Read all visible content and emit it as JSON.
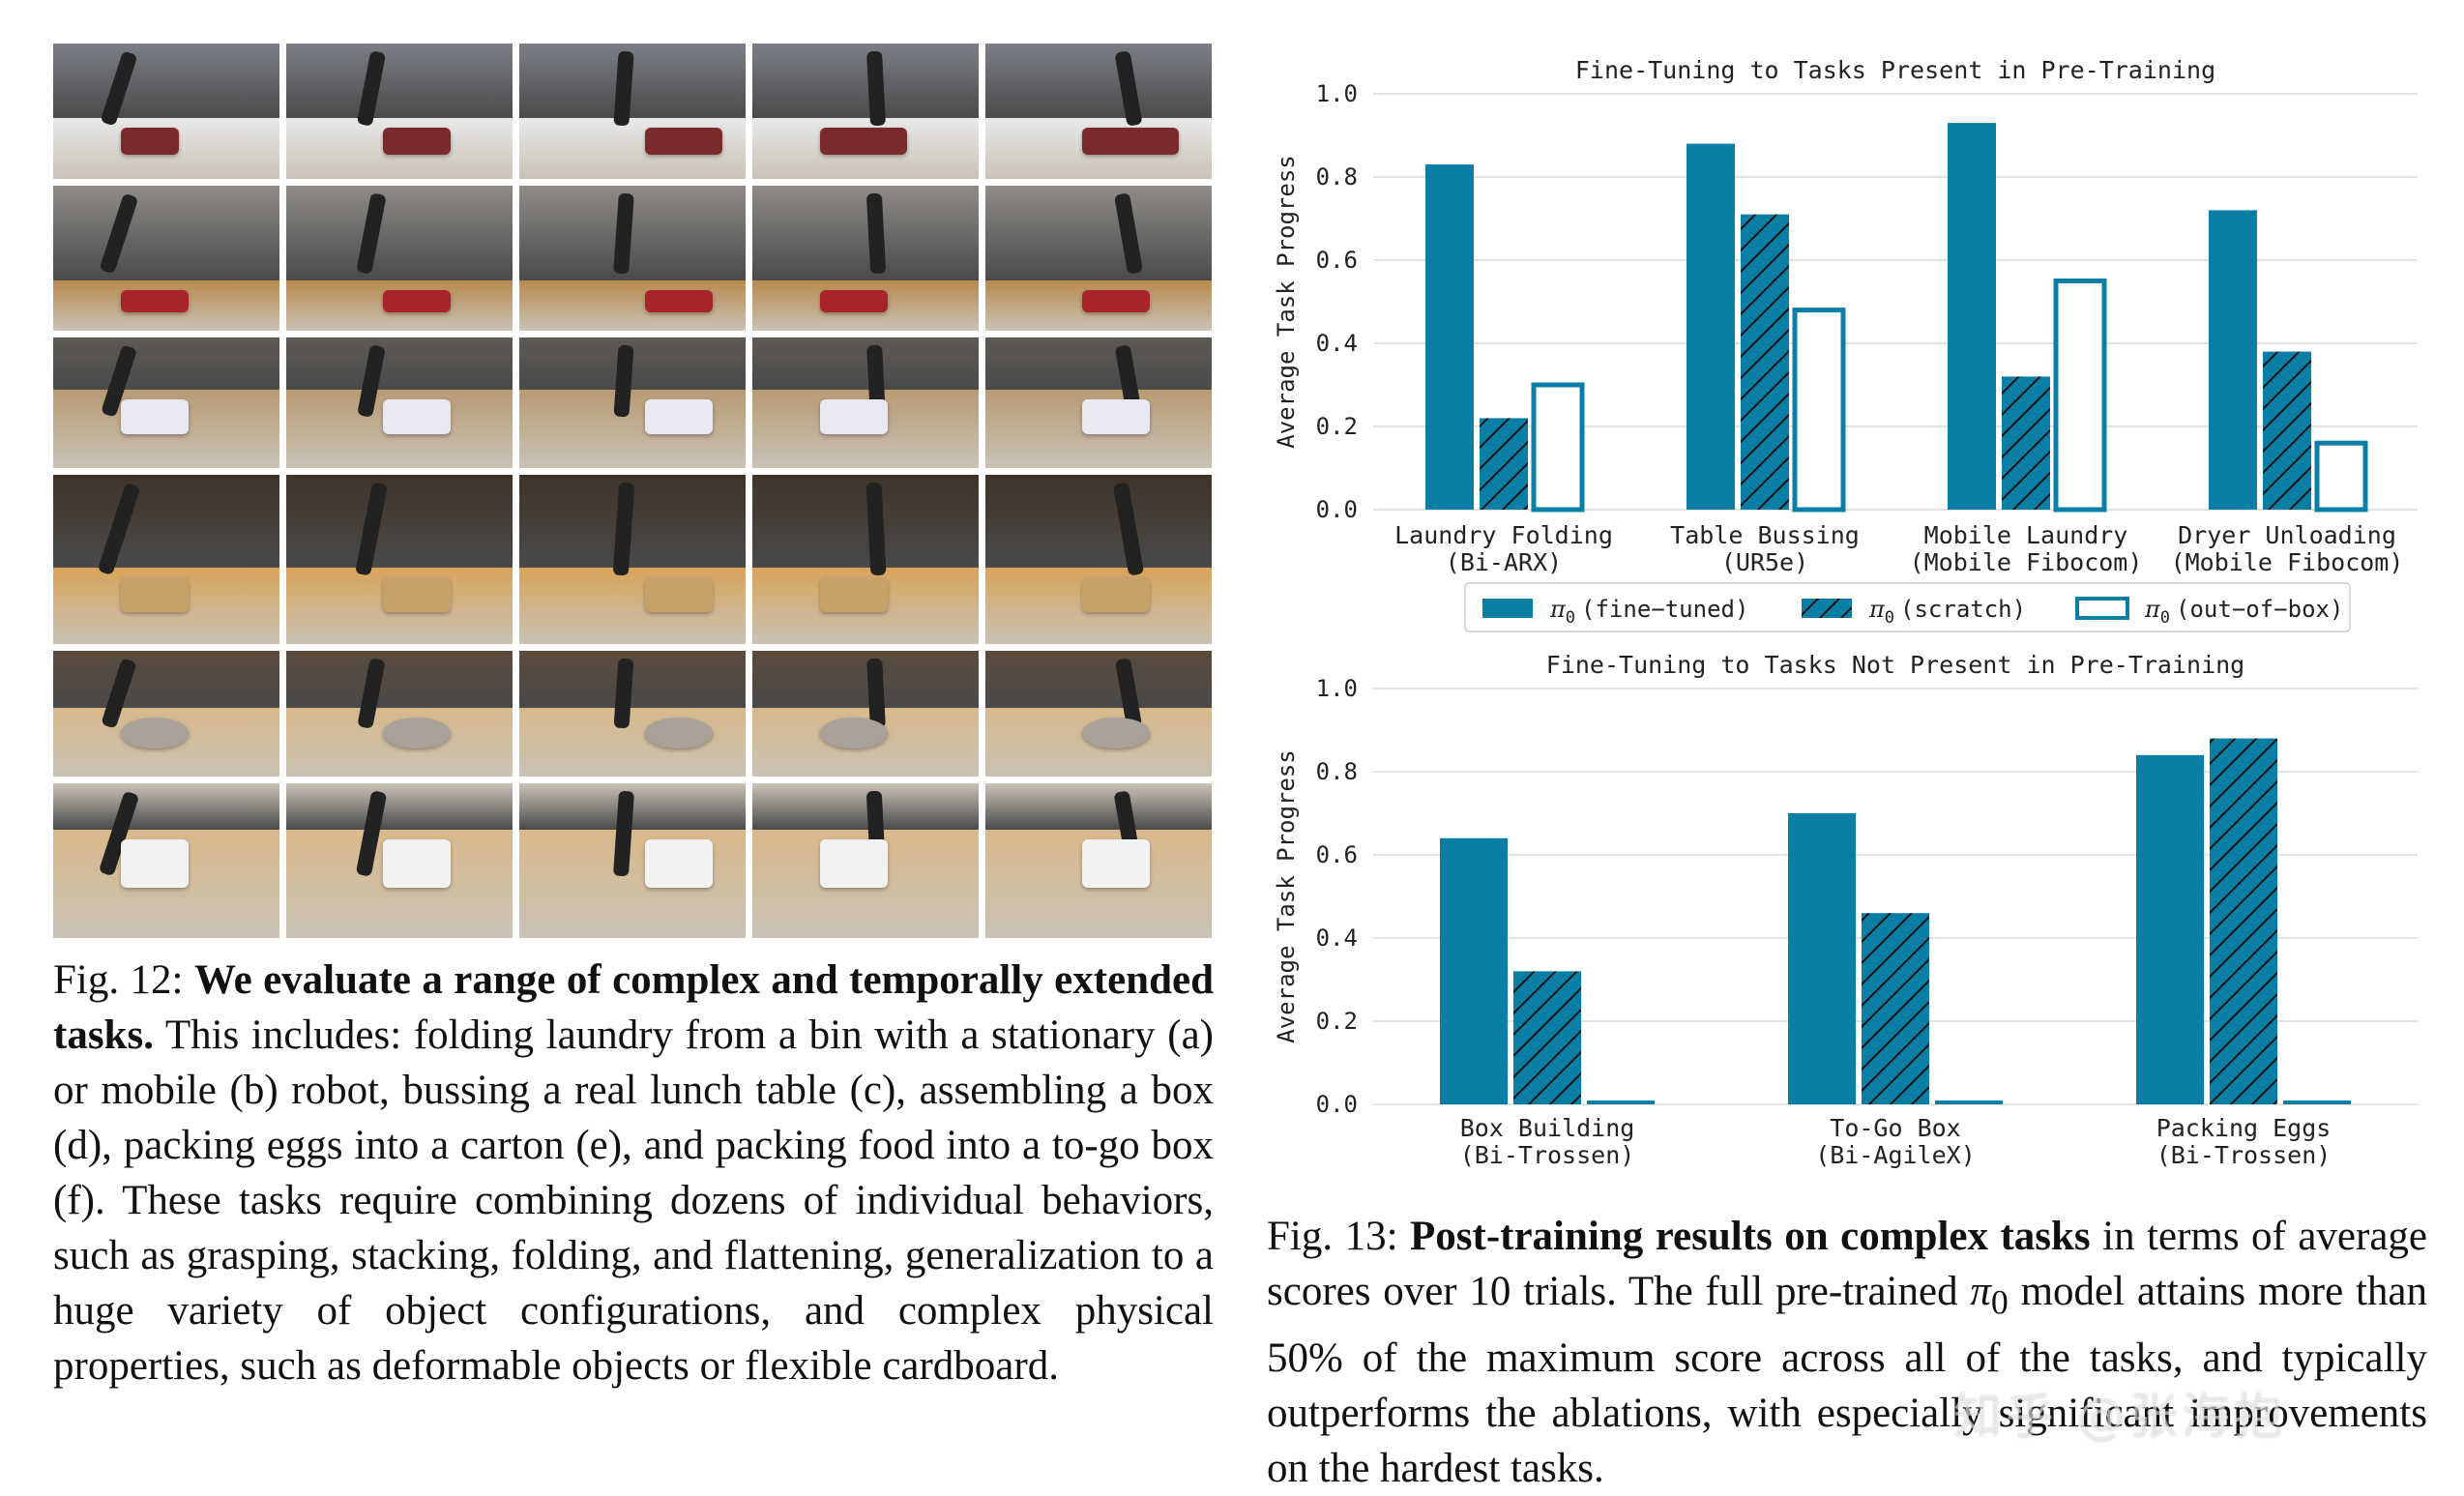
{
  "figure12": {
    "caption_label": "Fig. 12:",
    "caption_bold": "We evaluate a range of complex and temporally extended tasks.",
    "caption_text": "This includes: folding laundry from a bin with a stationary (a) or mobile (b) robot, bussing a real lunch table (c), assembling a box (d), packing eggs into a carton (e), and packing food into a to-go box (f). These tasks require combining dozens of individual behaviors, such as grasping, stacking, folding, and flattening, generalization to a huge variety of object configurations, and complex physical properties, such as deformable objects or flexible cardboard."
  },
  "figure13": {
    "caption_label": "Fig. 13:",
    "caption_bold": "Post-training results on complex tasks",
    "caption_text_before_symbol": "in terms of average scores over 10 trials. The full pre-trained",
    "symbol": "π",
    "symbol_sub": "0",
    "caption_text_after_symbol": "model attains more than 50% of the maximum score across all of the tasks, and typically outperforms the ablations, with especially significant improvements on the hardest tasks."
  },
  "chart_data": [
    {
      "type": "bar",
      "title": "Fine-Tuning to Tasks Present in Pre-Training",
      "ylabel": "Average Task Progress",
      "ylim": [
        0,
        1.0
      ],
      "yticks": [
        "0.0",
        "0.2",
        "0.4",
        "0.6",
        "0.8",
        "1.0"
      ],
      "grid": true,
      "categories": [
        [
          "Laundry Folding",
          "(Bi-ARX)"
        ],
        [
          "Table Bussing",
          "(UR5e)"
        ],
        [
          "Mobile Laundry",
          "(Mobile Fibocom)"
        ],
        [
          "Dryer Unloading",
          "(Mobile Fibocom)"
        ]
      ],
      "series": [
        {
          "name": "π0 (fine-tuned)",
          "label_base": "π",
          "label_sub": "0",
          "label_rest": "(fine−tuned)",
          "style": "solid",
          "values": [
            0.83,
            0.88,
            0.93,
            0.72
          ]
        },
        {
          "name": "π0 (scratch)",
          "label_base": "π",
          "label_sub": "0",
          "label_rest": "(scratch)",
          "style": "hatched",
          "values": [
            0.22,
            0.71,
            0.32,
            0.38
          ]
        },
        {
          "name": "π0 (out-of-box)",
          "label_base": "π",
          "label_sub": "0",
          "label_rest": "(out−of−box)",
          "style": "outline",
          "values": [
            0.3,
            0.48,
            0.55,
            0.16
          ]
        }
      ],
      "legend_position": "bottom-center"
    },
    {
      "type": "bar",
      "title": "Fine-Tuning to Tasks Not Present in Pre-Training",
      "ylabel": "Average Task Progress",
      "ylim": [
        0,
        1.0
      ],
      "yticks": [
        "0.0",
        "0.2",
        "0.4",
        "0.6",
        "0.8",
        "1.0"
      ],
      "grid": true,
      "categories": [
        [
          "Box Building",
          "(Bi-Trossen)"
        ],
        [
          "To-Go Box",
          "(Bi-AgileX)"
        ],
        [
          "Packing Eggs",
          "(Bi-Trossen)"
        ]
      ],
      "series": [
        {
          "name": "π0 (fine-tuned)",
          "style": "solid",
          "values": [
            0.64,
            0.7,
            0.84
          ]
        },
        {
          "name": "π0 (scratch)",
          "style": "hatched",
          "values": [
            0.32,
            0.46,
            0.88
          ]
        },
        {
          "name": "π0 (out-of-box)",
          "style": "outline",
          "values": [
            0.01,
            0.01,
            0.01
          ]
        }
      ]
    }
  ],
  "colors": {
    "bar": "#0a7ea4",
    "grid": "#d8d8d8",
    "text": "#222222"
  },
  "watermark": "知乎 @张海抱"
}
